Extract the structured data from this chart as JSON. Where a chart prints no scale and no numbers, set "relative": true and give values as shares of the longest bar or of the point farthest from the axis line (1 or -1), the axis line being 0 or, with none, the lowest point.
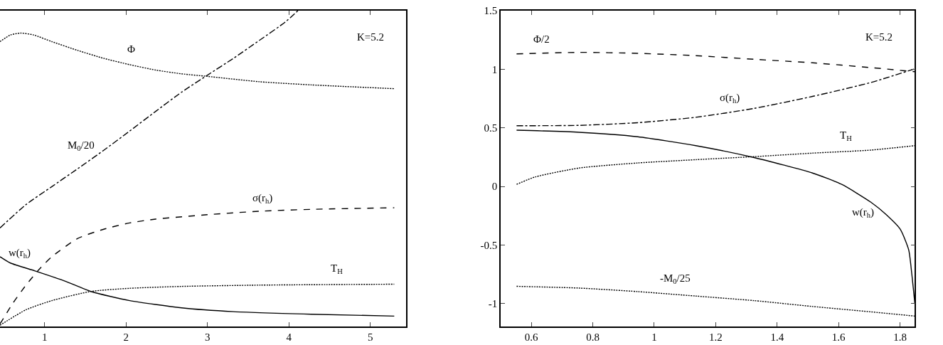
{
  "chart_data": [
    {
      "type": "line",
      "relative": true,
      "tick_labels": "x",
      "xlim": [
        0.452,
        5.436
      ],
      "xticks": [
        1,
        2,
        3,
        4,
        5
      ],
      "legend": false,
      "series": [
        {
          "name": "Φ",
          "color": "#000000",
          "line_style": "dotted",
          "x": [
            0.452,
            0.58,
            0.707,
            0.866,
            1.089,
            1.408,
            1.726,
            2.045,
            2.363,
            2.682,
            3.0,
            3.637,
            4.274,
            5.293
          ],
          "values": [
            0.902,
            0.923,
            0.929,
            0.923,
            0.902,
            0.874,
            0.849,
            0.829,
            0.812,
            0.8,
            0.792,
            0.775,
            0.765,
            0.753
          ]
        },
        {
          "name": "M$_{0}$/20",
          "color": "#000000",
          "line_style": "dashdot",
          "x": [
            0.452,
            0.771,
            1.089,
            1.408,
            1.726,
            2.045,
            2.363,
            2.682,
            3.0,
            3.318,
            3.637,
            3.955,
            4.11
          ],
          "values": [
            0.312,
            0.386,
            0.443,
            0.5,
            0.558,
            0.619,
            0.681,
            0.742,
            0.796,
            0.849,
            0.906,
            0.964,
            1
          ]
        },
        {
          "name": "σ(r$_{h}$)",
          "color": "#000000",
          "line_style": "dashed",
          "x": [
            0.452,
            0.611,
            0.771,
            0.93,
            1.089,
            1.408,
            1.726,
            2.045,
            2.363,
            3.0,
            3.637,
            4.274,
            5.293
          ],
          "values": [
            0.008,
            0.074,
            0.131,
            0.18,
            0.221,
            0.279,
            0.308,
            0.328,
            0.34,
            0.354,
            0.365,
            0.371,
            0.376
          ]
        },
        {
          "name": "T$_{H}$",
          "color": "#000000",
          "line_style": "dotted",
          "x": [
            0.452,
            0.771,
            1.089,
            1.567,
            2.045,
            2.682,
            3.637,
            5.293
          ],
          "values": [
            0.004,
            0.053,
            0.082,
            0.111,
            0.121,
            0.127,
            0.131,
            0.134
          ]
        },
        {
          "name": "w(r$_{h}$)",
          "color": "#000000",
          "line_style": "solid",
          "x": [
            0.452,
            0.58,
            0.882,
            1.248,
            1.567,
            2.045,
            2.682,
            3.318,
            4.274,
            5.293
          ],
          "values": [
            0.221,
            0.201,
            0.176,
            0.144,
            0.111,
            0.082,
            0.059,
            0.047,
            0.039,
            0.033
          ]
        }
      ],
      "annotations": [
        "K=5.2"
      ]
    },
    {
      "type": "line",
      "xlim": [
        0.5,
        1.848
      ],
      "xticks": [
        {
          "value": 0.6,
          "label": "0.6"
        },
        {
          "value": 0.8,
          "label": "0.8"
        },
        1,
        {
          "value": 1.2,
          "label": "1.2"
        },
        {
          "value": 1.4,
          "label": "1.4"
        },
        {
          "value": 1.6,
          "label": "1.6"
        },
        {
          "value": 1.8,
          "label": "1.8"
        }
      ],
      "ylim": [
        -1.196,
        1.5
      ],
      "yticks": [
        -1,
        -0.5,
        0,
        0.5,
        1,
        1.5
      ],
      "legend": false,
      "series": [
        {
          "name": "Φ/2",
          "color": "#000000",
          "line_style": "dashed",
          "x": [
            0.552,
            0.756,
            0.946,
            1.135,
            1.325,
            1.515,
            1.705,
            1.848
          ],
          "values": [
            1.131,
            1.144,
            1.136,
            1.116,
            1.085,
            1.055,
            1.014,
            0.979
          ]
        },
        {
          "name": "σ(r$_{h}$)",
          "color": "#000000",
          "line_style": "dashdot",
          "x": [
            0.552,
            0.756,
            0.946,
            1.135,
            1.325,
            1.515,
            1.705,
            1.848
          ],
          "values": [
            0.518,
            0.521,
            0.544,
            0.59,
            0.666,
            0.768,
            0.887,
            1.004
          ]
        },
        {
          "name": "T$_{H}$",
          "color": "#000000",
          "line_style": "dotted",
          "x": [
            0.552,
            0.613,
            0.756,
            0.946,
            1.135,
            1.325,
            1.515,
            1.705,
            1.848
          ],
          "values": [
            0.017,
            0.081,
            0.157,
            0.2,
            0.228,
            0.254,
            0.284,
            0.31,
            0.348
          ]
        },
        {
          "name": "w(r$_{h}$)",
          "color": "#000000",
          "line_style": "solid",
          "x": [
            0.552,
            0.756,
            0.946,
            1.135,
            1.325,
            1.515,
            1.61,
            1.705,
            1.753,
            1.8,
            1.828,
            1.838,
            1.848
          ],
          "values": [
            0.48,
            0.462,
            0.424,
            0.348,
            0.246,
            0.114,
            0.017,
            -0.135,
            -0.237,
            -0.364,
            -0.542,
            -0.746,
            -1.0
          ]
        },
        {
          "name": "-M$_{0}$/25",
          "color": "#000000",
          "line_style": "dotted",
          "x": [
            0.552,
            0.756,
            0.946,
            1.135,
            1.325,
            1.515,
            1.705,
            1.848
          ],
          "values": [
            -0.853,
            -0.868,
            -0.898,
            -0.936,
            -0.975,
            -1.025,
            -1.071,
            -1.107
          ]
        }
      ],
      "annotations": [
        "K=5.2"
      ]
    }
  ]
}
